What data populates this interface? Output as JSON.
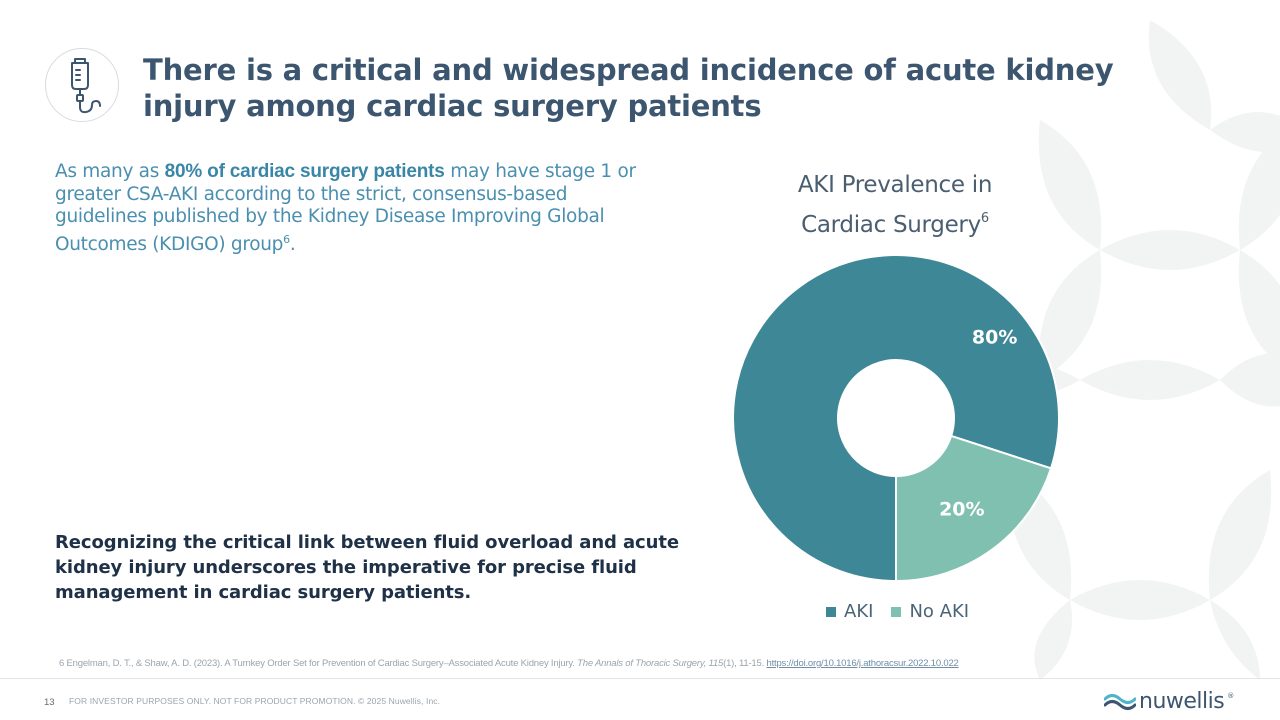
{
  "slide": {
    "title": "There is a critical and widespread incidence of acute kidney injury among cardiac surgery patients",
    "title_icon": "iv-drip-bag-icon"
  },
  "intro": {
    "before": "As many as ",
    "highlight": "80% of cardiac surgery patients",
    "after": " may have stage 1 or greater CSA-AKI according to the strict, consensus-based guidelines published by the Kidney Disease Improving Global Outcomes (KDIGO) group",
    "sup": "6",
    "end": "."
  },
  "closing": "Recognizing the critical link between fluid overload and acute kidney injury underscores the imperative for precise fluid management in cardiac surgery patients.",
  "chart_data": {
    "type": "pie",
    "title": "AKI Prevalence in Cardiac Surgery",
    "title_sup": "6",
    "categories": [
      "AKI",
      "No AKI"
    ],
    "values": [
      80,
      20
    ],
    "labels": [
      "80%",
      "20%"
    ],
    "colors": [
      "#3e8796",
      "#80c0b0"
    ],
    "legend_position": "bottom",
    "donut": true
  },
  "reference": {
    "prefix": "6 Engelman, D. T., & Shaw, A. D. (2023). A Turnkey Order Set for Prevention of Cardiac Surgery–Associated Acute Kidney Injury. ",
    "journal": "The Annals of Thoracic Surgery, 115",
    "suffix": "(1), 11-15. ",
    "link": "https://doi.org/10.1016/j.athoracsur.2022.10.022"
  },
  "footer": {
    "page_number": "13",
    "text": "FOR INVESTOR PURPOSES ONLY. NOT FOR PRODUCT PROMOTION. © 2025 Nuwellis, Inc.",
    "logo_text": "nuwellis",
    "logo_reg": "®"
  },
  "colors": {
    "title": "#3d5670",
    "intro_text": "#4a8fb0",
    "aki": "#3e8796",
    "no_aki": "#80c0b0",
    "logo_wave": "#4fb3c9"
  }
}
